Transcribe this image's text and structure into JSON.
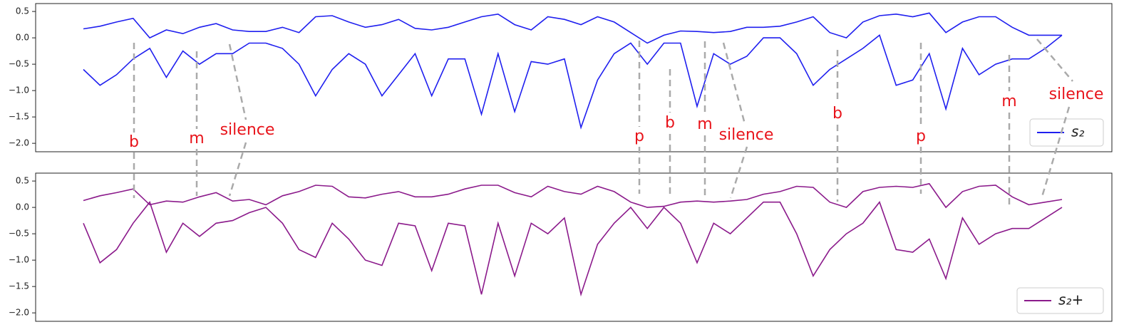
{
  "chart_data": [
    {
      "type": "line",
      "ylim": [
        -2.16,
        0.65
      ],
      "yticks": [
        {
          "value": 0.5,
          "label": "0.5"
        },
        {
          "value": 0.0,
          "label": "0.0"
        },
        {
          "value": -0.5,
          "label": "−0.5"
        },
        {
          "value": -1.0,
          "label": "−1.0"
        },
        {
          "value": -1.5,
          "label": "−1.5"
        },
        {
          "value": -2.0,
          "label": "−2.0"
        }
      ],
      "legend": "lower right",
      "series": [
        {
          "name": "s₂",
          "color": "#1f1fef",
          "values": [
            0.17,
            0.22,
            0.3,
            0.37,
            0.0,
            0.15,
            0.08,
            0.2,
            0.27,
            0.15,
            0.12,
            0.12,
            0.2,
            0.1,
            0.4,
            0.42,
            0.3,
            0.2,
            0.25,
            0.35,
            0.18,
            0.15,
            0.2,
            0.3,
            0.4,
            0.45,
            0.25,
            0.15,
            0.4,
            0.35,
            0.25,
            0.4,
            0.3,
            0.1,
            -0.1,
            0.05,
            0.13,
            0.12,
            0.1,
            0.12,
            0.2,
            0.2,
            0.22,
            0.3,
            0.4,
            0.1,
            0.0,
            0.3,
            0.42,
            0.45,
            0.4,
            0.47,
            0.1,
            0.3,
            0.4,
            0.4,
            0.2,
            0.05,
            0.05,
            0.05
          ]
        },
        {
          "color": "#1f1fef",
          "values": [
            -0.6,
            -0.9,
            -0.7,
            -0.4,
            -0.2,
            -0.75,
            -0.25,
            -0.5,
            -0.3,
            -0.3,
            -0.1,
            -0.1,
            -0.2,
            -0.5,
            -1.1,
            -0.6,
            -0.3,
            -0.5,
            -1.1,
            -0.7,
            -0.3,
            -1.1,
            -0.4,
            -0.4,
            -1.45,
            -0.3,
            -1.4,
            -0.45,
            -0.5,
            -0.4,
            -1.7,
            -0.8,
            -0.3,
            -0.1,
            -0.5,
            -0.1,
            -0.1,
            -1.3,
            -0.3,
            -0.5,
            -0.35,
            0.0,
            0.0,
            -0.3,
            -0.9,
            -0.6,
            -0.4,
            -0.2,
            0.05,
            -0.9,
            -0.8,
            -0.3,
            -1.35,
            -0.2,
            -0.7,
            -0.5,
            -0.4,
            -0.4,
            -0.2,
            0.05
          ]
        }
      ],
      "annotations": [
        "b",
        "m",
        "silence",
        "p",
        "b",
        "m",
        "silence",
        "b",
        "p",
        "m",
        "silence"
      ]
    },
    {
      "type": "line",
      "ylim": [
        -2.16,
        0.65
      ],
      "yticks": [
        {
          "value": 0.5,
          "label": "0.5"
        },
        {
          "value": 0.0,
          "label": "0.0"
        },
        {
          "value": -0.5,
          "label": "−0.5"
        },
        {
          "value": -1.0,
          "label": "−1.0"
        },
        {
          "value": -1.5,
          "label": "−1.5"
        },
        {
          "value": -2.0,
          "label": "−2.0"
        }
      ],
      "legend": "lower right",
      "series": [
        {
          "name": "s₂+",
          "color": "#8b1a8b",
          "values": [
            0.13,
            0.22,
            0.28,
            0.35,
            0.05,
            0.12,
            0.1,
            0.2,
            0.28,
            0.12,
            0.15,
            0.05,
            0.22,
            0.3,
            0.42,
            0.4,
            0.2,
            0.18,
            0.25,
            0.3,
            0.2,
            0.2,
            0.25,
            0.35,
            0.42,
            0.42,
            0.28,
            0.2,
            0.4,
            0.3,
            0.25,
            0.4,
            0.3,
            0.1,
            0.0,
            0.02,
            0.1,
            0.12,
            0.1,
            0.12,
            0.15,
            0.25,
            0.3,
            0.4,
            0.38,
            0.1,
            0.0,
            0.3,
            0.38,
            0.4,
            0.38,
            0.45,
            0.0,
            0.3,
            0.4,
            0.42,
            0.2,
            0.05,
            0.1,
            0.15
          ]
        },
        {
          "color": "#8b1a8b",
          "values": [
            -0.3,
            -1.05,
            -0.8,
            -0.3,
            0.1,
            -0.85,
            -0.3,
            -0.55,
            -0.3,
            -0.25,
            -0.1,
            0.0,
            -0.3,
            -0.8,
            -0.95,
            -0.3,
            -0.6,
            -1.0,
            -1.1,
            -0.3,
            -0.35,
            -1.2,
            -0.3,
            -0.35,
            -1.65,
            -0.3,
            -1.3,
            -0.3,
            -0.5,
            -0.2,
            -1.65,
            -0.7,
            -0.3,
            0.0,
            -0.4,
            0.0,
            -0.3,
            -1.05,
            -0.3,
            -0.5,
            -0.2,
            0.1,
            0.1,
            -0.5,
            -1.3,
            -0.8,
            -0.5,
            -0.3,
            0.1,
            -0.8,
            -0.85,
            -0.6,
            -1.35,
            -0.2,
            -0.7,
            -0.5,
            -0.4,
            -0.4,
            -0.2,
            0.0
          ]
        }
      ]
    }
  ]
}
